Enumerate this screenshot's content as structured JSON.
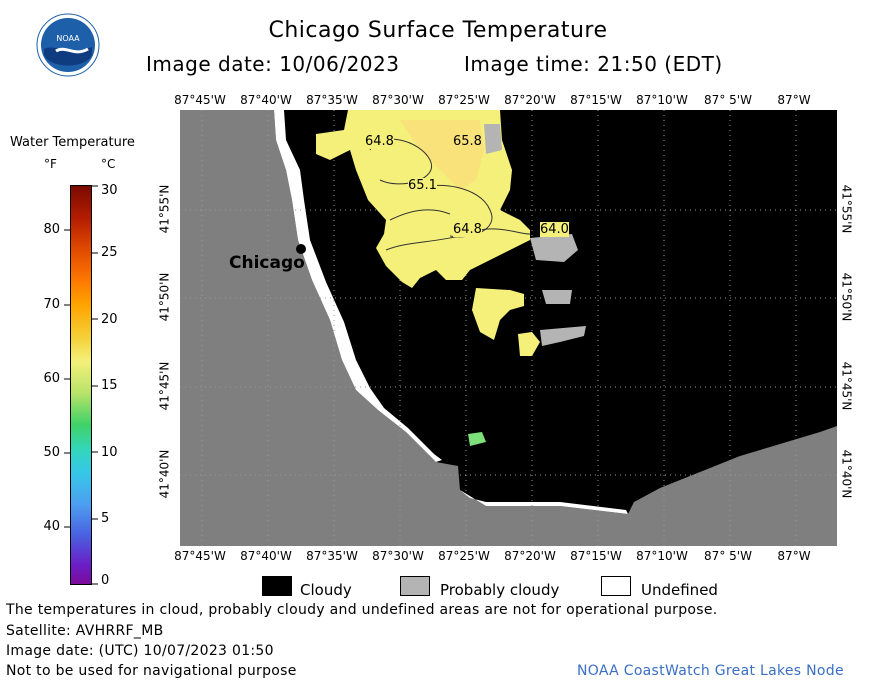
{
  "header": {
    "title": "Chicago Surface Temperature",
    "image_date": "Image date: 10/06/2023",
    "image_time": "Image time: 21:50 (EDT)"
  },
  "logo": {
    "text": "NOAA",
    "colors": {
      "ring": "#ffffff",
      "sky": "#1d5fa8",
      "wave": "#0f3c80"
    }
  },
  "colorbar": {
    "title": "Water Temperature",
    "unit_f": "°F",
    "unit_c": "°C",
    "f_ticks": [
      "80",
      "70",
      "60",
      "50",
      "40"
    ],
    "c_ticks": [
      "30",
      "25",
      "20",
      "15",
      "10",
      "5",
      "0"
    ]
  },
  "map": {
    "top_lon_labels": [
      "87°45'W",
      "87°40'W",
      "87°35'W",
      "87°30'W",
      "87°25'W",
      "87°20'W",
      "87°15'W",
      "87°10'W",
      "87° 5'W",
      "87°W"
    ],
    "bottom_lon_labels": [
      "87°45'W",
      "87°40'W",
      "87°35'W",
      "87°30'W",
      "87°25'W",
      "87°20'W",
      "87°15'W",
      "87°10'W",
      "87° 5'W",
      "87°W"
    ],
    "left_lat_labels": [
      "41°55'N",
      "41°50'N",
      "41°45'N",
      "41°40'N"
    ],
    "right_lat_labels": [
      "41°55'N",
      "41°50'N",
      "41°45'N",
      "41°40'N"
    ],
    "city_label": "Chicago",
    "temperature_labels": [
      "64.8",
      "65.8",
      "65.1",
      "64.8",
      "64.0"
    ],
    "colors": {
      "land": "#7f7f7f",
      "cloudy": "#000000",
      "probably_cloudy": "#b4b4b4",
      "undefined": "#ffffff",
      "warm_water": "#f4f07a",
      "warmer_water": "#f9e27a"
    }
  },
  "legend": {
    "cloudy": "Cloudy",
    "probably_cloudy": "Probably cloudy",
    "undefined": "Undefined"
  },
  "footer": {
    "disclaimer": "The temperatures in cloud, probably cloudy and undefined areas are not for operational purpose.",
    "satellite": "Satellite: AVHRRF_MB",
    "utc_date": "Image date: (UTC) 10/07/2023  01:50",
    "navigation": "Not to be used for navigational purpose",
    "credit": "NOAA CoastWatch Great Lakes Node",
    "credit_color": "#3a6fc4"
  }
}
